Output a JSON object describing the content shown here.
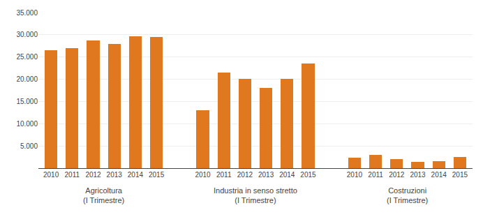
{
  "chart_data": {
    "type": "bar",
    "groups": [
      {
        "label": "Agricoltura\n(I Trimestre)",
        "categories": [
          "2010",
          "2011",
          "2012",
          "2013",
          "2014",
          "2015"
        ],
        "values": [
          26500,
          27000,
          28700,
          27900,
          29600,
          29500
        ]
      },
      {
        "label": "Industria in senso stretto\n(I Trimestre)",
        "categories": [
          "2010",
          "2011",
          "2012",
          "2013",
          "2014",
          "2015"
        ],
        "values": [
          13000,
          21500,
          20100,
          18000,
          20100,
          23500
        ]
      },
      {
        "label": "Costruzioni\n(I Trimestre)",
        "categories": [
          "2010",
          "2011",
          "2012",
          "2013",
          "2014",
          "2015"
        ],
        "values": [
          2400,
          3000,
          2000,
          1400,
          1600,
          2500
        ]
      }
    ],
    "color": "#E07820",
    "ylim": [
      0,
      35000
    ],
    "yticks": [
      {
        "value": 0,
        "label": null
      },
      {
        "value": 5000,
        "label": "5.000"
      },
      {
        "value": 10000,
        "label": "10.000"
      },
      {
        "value": 15000,
        "label": "15.000"
      },
      {
        "value": 20000,
        "label": "20.000"
      },
      {
        "value": 25000,
        "label": "25.000"
      },
      {
        "value": 30000,
        "label": "30.000"
      },
      {
        "value": 35000,
        "label": "35.000"
      }
    ],
    "grid": true
  }
}
